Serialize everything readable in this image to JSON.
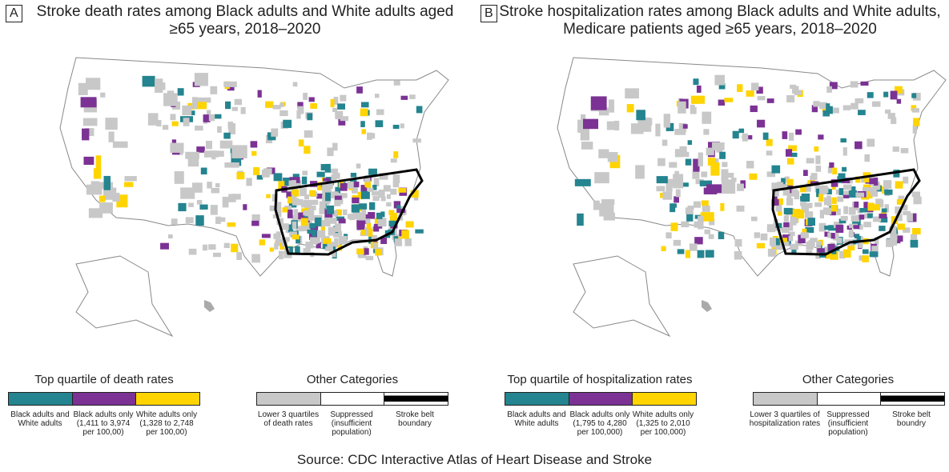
{
  "colors": {
    "both": "#24848f",
    "black_only": "#7b3294",
    "white_only": "#ffd400",
    "lower3": "#c8c8c8",
    "suppressed": "#ffffff",
    "belt": "#000000"
  },
  "panels": [
    {
      "label": "A",
      "title": "Stroke death rates among Black adults and White adults aged ≥65 years, 2018–2020",
      "legend_top": {
        "title": "Top quartile of death rates",
        "items": [
          "Black adults and White adults",
          "Black adults only (1,411 to 3,974 per 100,00)",
          "White adults only (1,328 to 2,748 per 100,00)"
        ]
      },
      "legend_other": {
        "title": "Other Categories",
        "items": [
          "Lower 3 quartiles of death rates",
          "Suppressed (insufficient population)",
          "Stroke belt boundary"
        ]
      }
    },
    {
      "label": "B",
      "title": "Stroke hospitalization rates among Black adults and White adults, Medicare patients aged ≥65 years, 2018–2020",
      "legend_top": {
        "title": "Top quartile of hospitalization rates",
        "items": [
          "Black adults and White adults",
          "Black adults only (1,795 to 4,280 per 100,000)",
          "White adults only (1,325 to 2,010 per 100,000)"
        ]
      },
      "legend_other": {
        "title": "Other Categories",
        "items": [
          "Lower 3 quartiles of hospitalization rates",
          "Suppressed (insufficient population)",
          "Stroke belt boundry"
        ]
      }
    }
  ],
  "source": "Source: CDC Interactive Atlas of Heart Disease and Stroke"
}
